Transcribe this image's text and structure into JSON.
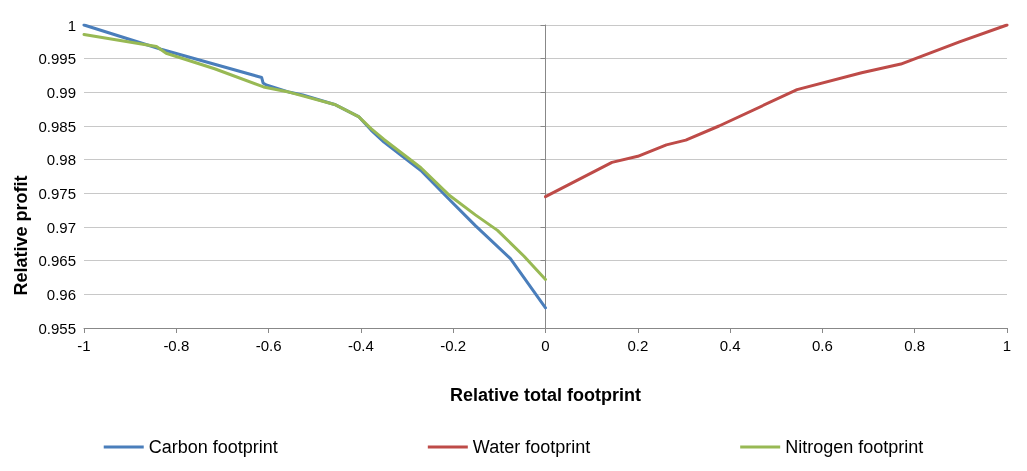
{
  "chart_data": {
    "type": "line",
    "xlabel": "Relative total footprint",
    "ylabel": "Relative profit",
    "xlim": [
      -1,
      1
    ],
    "xticks": [
      -1,
      -0.8,
      -0.6,
      -0.4,
      -0.2,
      0,
      0.2,
      0.4,
      0.6,
      0.8,
      1
    ],
    "ylim": [
      0.955,
      1
    ],
    "yticks": [
      0.955,
      0.96,
      0.965,
      0.97,
      0.975,
      0.98,
      0.985,
      0.99,
      0.995,
      1
    ],
    "grid": "y",
    "legend": "bottom",
    "marker": "none",
    "line_style": "solid",
    "series": [
      {
        "name": "Carbon footprint",
        "color": "#4a7ebb",
        "x": [
          -1,
          -0.833,
          -0.615,
          -0.612,
          -0.605,
          -0.554,
          -0.526,
          -0.457,
          -0.405,
          -0.378,
          -0.35,
          -0.27,
          -0.21,
          -0.152,
          -0.076,
          0
        ],
        "values": [
          1.0,
          0.9964,
          0.9922,
          0.9914,
          0.9911,
          0.99,
          0.9896,
          0.9882,
          0.9864,
          0.9844,
          0.9826,
          0.9784,
          0.9742,
          0.9702,
          0.9653,
          0.958
        ]
      },
      {
        "name": "Water footprint",
        "color": "#be4b48",
        "x": [
          0,
          0.144,
          0.2,
          0.262,
          0.304,
          0.376,
          0.545,
          0.685,
          0.77,
          0.897,
          1
        ],
        "values": [
          0.9745,
          0.9796,
          0.9805,
          0.9822,
          0.9829,
          0.985,
          0.9904,
          0.9929,
          0.9942,
          0.9975,
          1.0
        ]
      },
      {
        "name": "Nitrogen footprint",
        "color": "#98b954",
        "x": [
          -1,
          -0.843,
          -0.822,
          -0.717,
          -0.611,
          -0.554,
          -0.457,
          -0.405,
          -0.378,
          -0.35,
          -0.27,
          -0.21,
          -0.152,
          -0.104,
          -0.047,
          0
        ],
        "values": [
          0.9986,
          0.9968,
          0.9958,
          0.9935,
          0.9908,
          0.99,
          0.9882,
          0.9864,
          0.9846,
          0.983,
          0.9788,
          0.9748,
          0.9718,
          0.9695,
          0.9657,
          0.9622
        ]
      }
    ]
  }
}
